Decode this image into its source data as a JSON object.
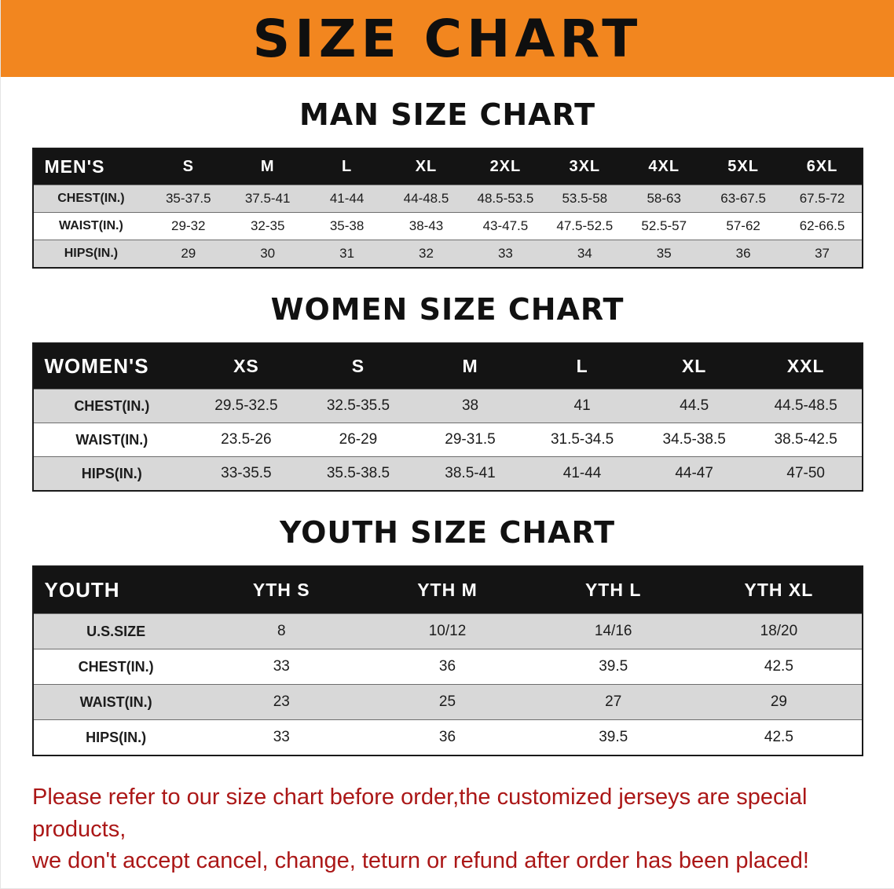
{
  "banner": {
    "title": "SIZE CHART",
    "bg_color": "#f2861f",
    "text_color": "#0f0f0f"
  },
  "men": {
    "heading": "MAN SIZE CHART",
    "table": {
      "header": [
        "MEN'S",
        "S",
        "M",
        "L",
        "XL",
        "2XL",
        "3XL",
        "4XL",
        "5XL",
        "6XL"
      ],
      "rows": [
        [
          "CHEST(IN.)",
          "35-37.5",
          "37.5-41",
          "41-44",
          "44-48.5",
          "48.5-53.5",
          "53.5-58",
          "58-63",
          "63-67.5",
          "67.5-72"
        ],
        [
          "WAIST(IN.)",
          "29-32",
          "32-35",
          "35-38",
          "38-43",
          "43-47.5",
          "47.5-52.5",
          "52.5-57",
          "57-62",
          "62-66.5"
        ],
        [
          "HIPS(IN.)",
          "29",
          "30",
          "31",
          "32",
          "33",
          "34",
          "35",
          "36",
          "37"
        ]
      ]
    }
  },
  "women": {
    "heading": "WOMEN SIZE CHART",
    "table": {
      "header": [
        "WOMEN'S",
        "XS",
        "S",
        "M",
        "L",
        "XL",
        "XXL"
      ],
      "rows": [
        [
          "CHEST(IN.)",
          "29.5-32.5",
          "32.5-35.5",
          "38",
          "41",
          "44.5",
          "44.5-48.5"
        ],
        [
          "WAIST(IN.)",
          "23.5-26",
          "26-29",
          "29-31.5",
          "31.5-34.5",
          "34.5-38.5",
          "38.5-42.5"
        ],
        [
          "HIPS(IN.)",
          "33-35.5",
          "35.5-38.5",
          "38.5-41",
          "41-44",
          "44-47",
          "47-50"
        ]
      ]
    }
  },
  "youth": {
    "heading": "YOUTH SIZE CHART",
    "table": {
      "header": [
        "YOUTH",
        "YTH S",
        "YTH M",
        "YTH L",
        "YTH XL"
      ],
      "rows": [
        [
          "U.S.SIZE",
          "8",
          "10/12",
          "14/16",
          "18/20"
        ],
        [
          "CHEST(IN.)",
          "33",
          "36",
          "39.5",
          "42.5"
        ],
        [
          "WAIST(IN.)",
          "23",
          "25",
          "27",
          "29"
        ],
        [
          "HIPS(IN.)",
          "33",
          "36",
          "39.5",
          "42.5"
        ]
      ]
    }
  },
  "footer": {
    "lines": [
      "Please refer to our size chart before order,the customized jerseys are special products,",
      "we don't accept cancel, change, teturn or refund after order has been placed!"
    ],
    "text_color": "#ab1717"
  }
}
